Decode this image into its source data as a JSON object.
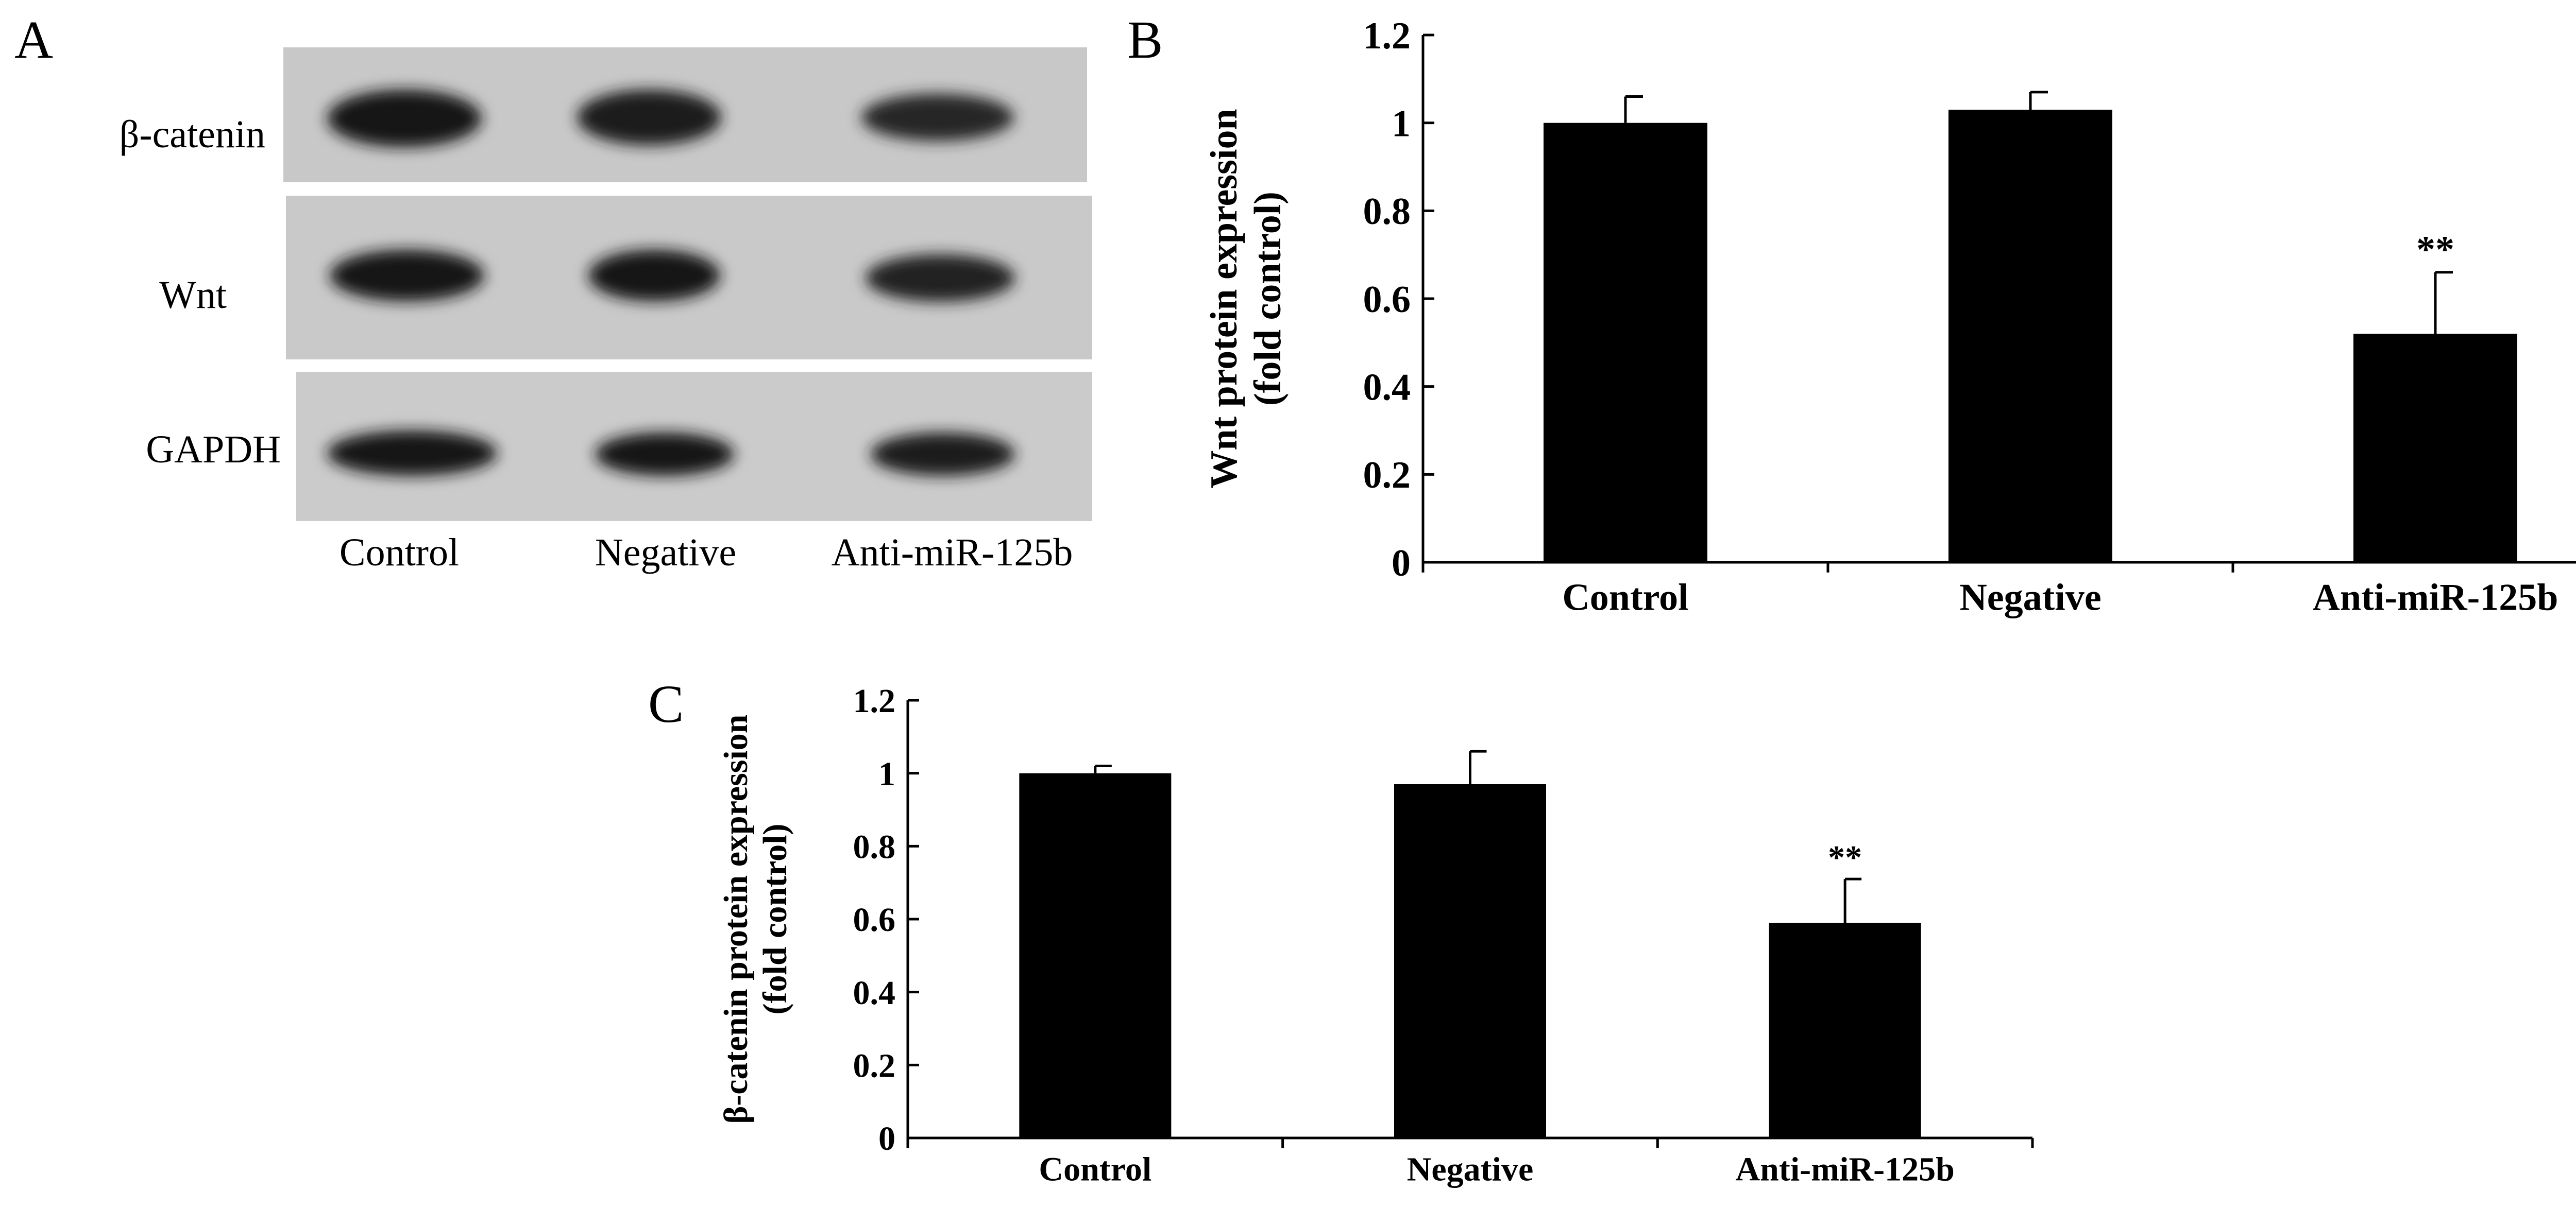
{
  "panel_labels": {
    "a": "A",
    "b": "B",
    "c": "C"
  },
  "blot": {
    "rows": [
      "β-catenin",
      "Wnt",
      "GAPDH"
    ],
    "lanes": [
      "Control",
      "Negative",
      "Anti-miR-125b"
    ]
  },
  "colors": {
    "bar": "#000000",
    "axis": "#000000",
    "blot_bg": "#c8c8c8",
    "band": "#1a1a1a"
  },
  "chart_data": [
    {
      "type": "bar",
      "panel": "B",
      "categories": [
        "Control",
        "Negative",
        "Anti-miR-125b"
      ],
      "values": [
        1.0,
        1.03,
        0.52
      ],
      "errors": [
        0.06,
        0.04,
        0.14
      ],
      "annotations": [
        "",
        "",
        "**"
      ],
      "ylabel": [
        "Wnt protein expression",
        "(fold control)"
      ],
      "ylim": [
        0,
        1.2
      ],
      "yticks": [
        "0",
        "0.2",
        "0.4",
        "0.6",
        "0.8",
        "1",
        "1.2"
      ],
      "grid": false
    },
    {
      "type": "bar",
      "panel": "C",
      "categories": [
        "Control",
        "Negative",
        "Anti-miR-125b"
      ],
      "values": [
        1.0,
        0.97,
        0.59
      ],
      "errors": [
        0.02,
        0.09,
        0.12
      ],
      "annotations": [
        "",
        "",
        "**"
      ],
      "ylabel": [
        "β-catenin protein expression",
        "(fold control)"
      ],
      "ylim": [
        0,
        1.2
      ],
      "yticks": [
        "0",
        "0.2",
        "0.4",
        "0.6",
        "0.8",
        "1",
        "1.2"
      ],
      "grid": false
    }
  ]
}
